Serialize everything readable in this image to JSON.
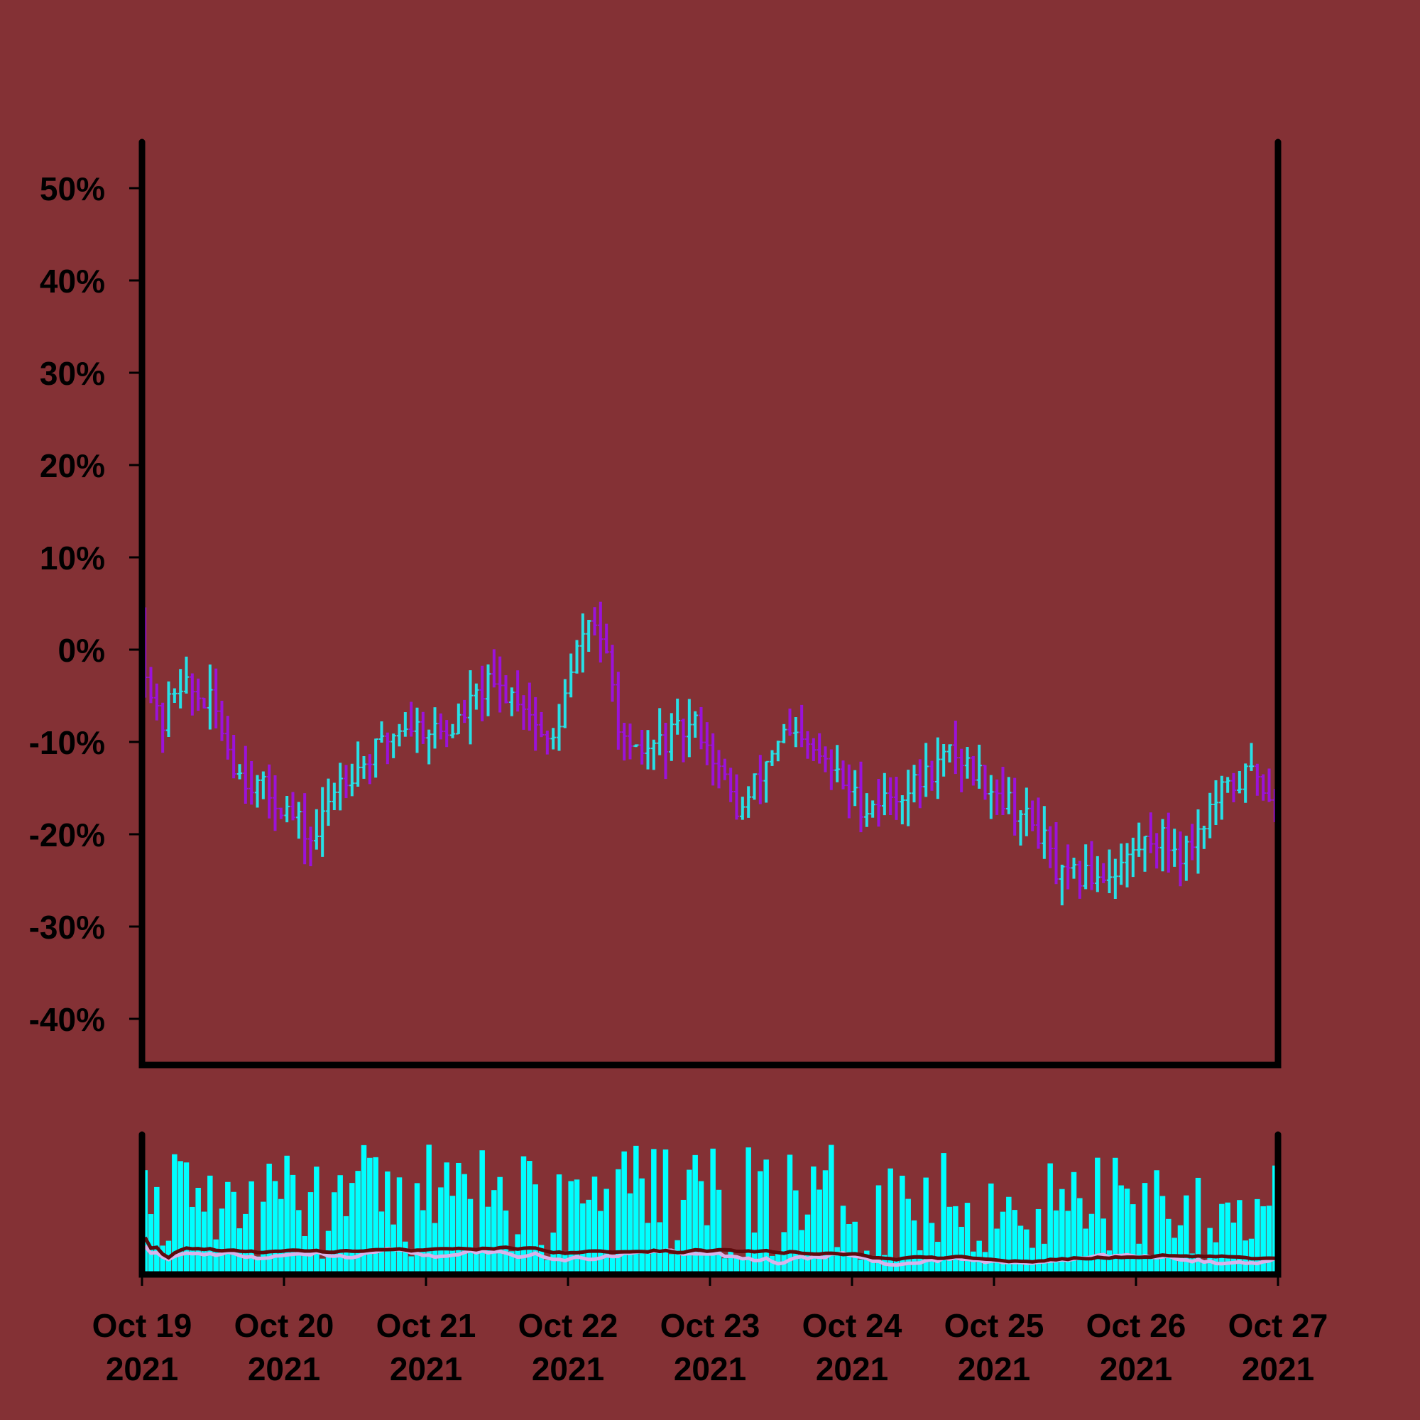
{
  "colors": {
    "background": "#843135",
    "axis": "#000000",
    "up": "#27e0e6",
    "down": "#9b12d9",
    "volume": "#00ffff",
    "volume_ma_fast": "#d9b2ea",
    "volume_ma_slow": "#5e0b0d"
  },
  "chart_data": [
    {
      "type": "ohlc",
      "panel": "price",
      "title": "",
      "xlabel": "",
      "ylabel": "",
      "grid": false,
      "ylim": [
        -0.45,
        0.55
      ],
      "yticks": [
        0.5,
        0.4,
        0.3,
        0.2,
        0.1,
        0.0,
        -0.1,
        -0.2,
        -0.3,
        -0.4
      ],
      "ytick_labels": [
        "50%",
        "40%",
        "30%",
        "20%",
        "10%",
        "0%",
        "-10%",
        "-20%",
        "-30%",
        "-40%"
      ],
      "xlim": [
        "2021-10-19",
        "2021-10-27"
      ],
      "bars_per_day": 24,
      "anchors": [
        {
          "date": "2021-10-19 00:00",
          "close": 0.0
        },
        {
          "date": "2021-10-19 03:00",
          "close": -0.09
        },
        {
          "date": "2021-10-19 06:00",
          "close": -0.03
        },
        {
          "date": "2021-10-19 09:00",
          "close": -0.05
        },
        {
          "date": "2021-10-19 12:00",
          "close": -0.06
        },
        {
          "date": "2021-10-19 16:00",
          "close": -0.13
        },
        {
          "date": "2021-10-20 00:00",
          "close": -0.17
        },
        {
          "date": "2021-10-20 05:00",
          "close": -0.21
        },
        {
          "date": "2021-10-20 09:00",
          "close": -0.14
        },
        {
          "date": "2021-10-20 14:00",
          "close": -0.12
        },
        {
          "date": "2021-10-20 20:00",
          "close": -0.08
        },
        {
          "date": "2021-10-21 04:00",
          "close": -0.09
        },
        {
          "date": "2021-10-21 10:00",
          "close": -0.04
        },
        {
          "date": "2021-10-21 16:00",
          "close": -0.05
        },
        {
          "date": "2021-10-21 21:00",
          "close": -0.11
        },
        {
          "date": "2021-10-22 03:00",
          "close": 0.03
        },
        {
          "date": "2021-10-22 05:00",
          "close": 0.03
        },
        {
          "date": "2021-10-22 10:00",
          "close": -0.12
        },
        {
          "date": "2021-10-22 16:00",
          "close": -0.1
        },
        {
          "date": "2021-10-22 22:00",
          "close": -0.08
        },
        {
          "date": "2021-10-23 05:00",
          "close": -0.18
        },
        {
          "date": "2021-10-23 12:00",
          "close": -0.09
        },
        {
          "date": "2021-10-23 19:00",
          "close": -0.12
        },
        {
          "date": "2021-10-24 02:00",
          "close": -0.17
        },
        {
          "date": "2021-10-24 10:00",
          "close": -0.15
        },
        {
          "date": "2021-10-24 17:00",
          "close": -0.11
        },
        {
          "date": "2021-10-25 00:00",
          "close": -0.15
        },
        {
          "date": "2021-10-25 08:00",
          "close": -0.2
        },
        {
          "date": "2021-10-25 11:00",
          "close": -0.25
        },
        {
          "date": "2021-10-25 20:00",
          "close": -0.24
        },
        {
          "date": "2021-10-26 03:00",
          "close": -0.2
        },
        {
          "date": "2021-10-26 08:00",
          "close": -0.22
        },
        {
          "date": "2021-10-26 14:00",
          "close": -0.16
        },
        {
          "date": "2021-10-26 20:00",
          "close": -0.13
        },
        {
          "date": "2021-10-27 00:00",
          "close": -0.17
        }
      ]
    },
    {
      "type": "bar",
      "panel": "volume",
      "title": "",
      "ylabel": "",
      "yticks": [],
      "series": [
        {
          "kind": "volume"
        },
        {
          "kind": "moving_average",
          "style": "fast"
        },
        {
          "kind": "moving_average",
          "style": "slow"
        }
      ]
    }
  ],
  "x_axis": {
    "ticks": [
      {
        "line1": "Oct 19",
        "line2": "2021"
      },
      {
        "line1": "Oct 20",
        "line2": "2021"
      },
      {
        "line1": "Oct 21",
        "line2": "2021"
      },
      {
        "line1": "Oct 22",
        "line2": "2021"
      },
      {
        "line1": "Oct 23",
        "line2": "2021"
      },
      {
        "line1": "Oct 24",
        "line2": "2021"
      },
      {
        "line1": "Oct 25",
        "line2": "2021"
      },
      {
        "line1": "Oct 26",
        "line2": "2021"
      },
      {
        "line1": "Oct 27",
        "line2": "2021"
      }
    ]
  }
}
